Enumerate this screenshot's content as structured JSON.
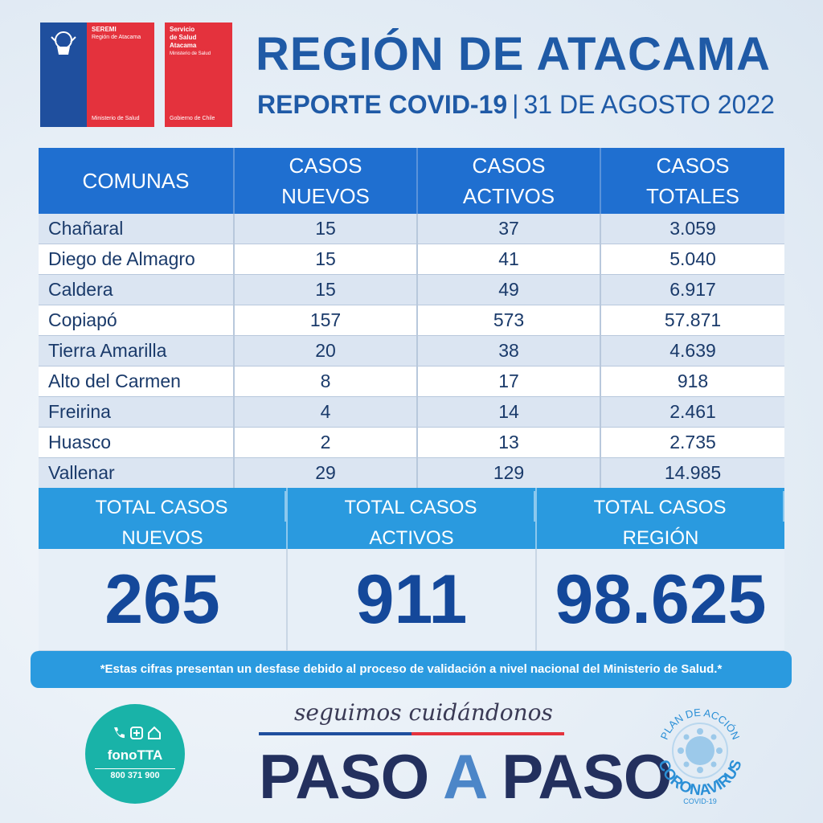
{
  "logos": {
    "seremi": {
      "title": "SEREMI",
      "subtitle": "Región de Atacama",
      "footer": "Ministerio de Salud"
    },
    "ssa": {
      "title_line1": "Servicio",
      "title_line2": "de Salud",
      "title_line3": "Atacama",
      "subtitle": "Ministerio de Salud",
      "footer": "Gobierno de Chile"
    }
  },
  "header": {
    "title": "REGIÓN DE ATACAMA",
    "report": "REPORTE COVID-19",
    "separator": "|",
    "date": "31 DE AGOSTO 2022"
  },
  "table": {
    "headers": [
      {
        "line1": "COMUNAS",
        "line2": ""
      },
      {
        "line1": "CASOS",
        "line2": "NUEVOS"
      },
      {
        "line1": "CASOS",
        "line2": "ACTIVOS"
      },
      {
        "line1": "CASOS",
        "line2": "TOTALES"
      }
    ],
    "rows": [
      {
        "comuna": "Chañaral",
        "nuevos": "15",
        "activos": "37",
        "totales": "3.059"
      },
      {
        "comuna": "Diego de Almagro",
        "nuevos": "15",
        "activos": "41",
        "totales": "5.040"
      },
      {
        "comuna": "Caldera",
        "nuevos": "15",
        "activos": "49",
        "totales": "6.917"
      },
      {
        "comuna": "Copiapó",
        "nuevos": "157",
        "activos": "573",
        "totales": "57.871"
      },
      {
        "comuna": "Tierra Amarilla",
        "nuevos": "20",
        "activos": "38",
        "totales": "4.639"
      },
      {
        "comuna": "Alto del Carmen",
        "nuevos": "8",
        "activos": "17",
        "totales": "918"
      },
      {
        "comuna": "Freirina",
        "nuevos": "4",
        "activos": "14",
        "totales": "2.461"
      },
      {
        "comuna": "Huasco",
        "nuevos": "2",
        "activos": "13",
        "totales": "2.735"
      },
      {
        "comuna": "Vallenar",
        "nuevos": "29",
        "activos": "129",
        "totales": "14.985"
      }
    ]
  },
  "totals": {
    "nuevos": {
      "label1": "TOTAL CASOS",
      "label2": "NUEVOS",
      "value": "265"
    },
    "activos": {
      "label1": "TOTAL CASOS",
      "label2": "ACTIVOS",
      "value": "911"
    },
    "region": {
      "label1": "TOTAL CASOS",
      "label2": "REGIÓN",
      "value": "98.625"
    }
  },
  "note": "*Estas cifras presentan un desfase debido al proceso de validación a nivel nacional del Ministerio de Salud.*",
  "footer": {
    "fono_name": "fonoTTA",
    "fono_phone": "800 371 900",
    "slogan": "seguimos cuidándonos",
    "paso1": "PASO",
    "paso_a": "A",
    "paso2": "PASO",
    "corona_top": "PLAN DE ACCIÓN",
    "corona_main": "CORONAVIRUS",
    "corona_sub": "COVID-19"
  },
  "colors": {
    "brand_blue": "#1f5aa6",
    "header_blue": "#1f6fd0",
    "total_blue": "#2a9adf",
    "gov_red": "#e4323d",
    "gov_blue": "#1f4f9e",
    "fono_teal": "#19b3a8"
  }
}
